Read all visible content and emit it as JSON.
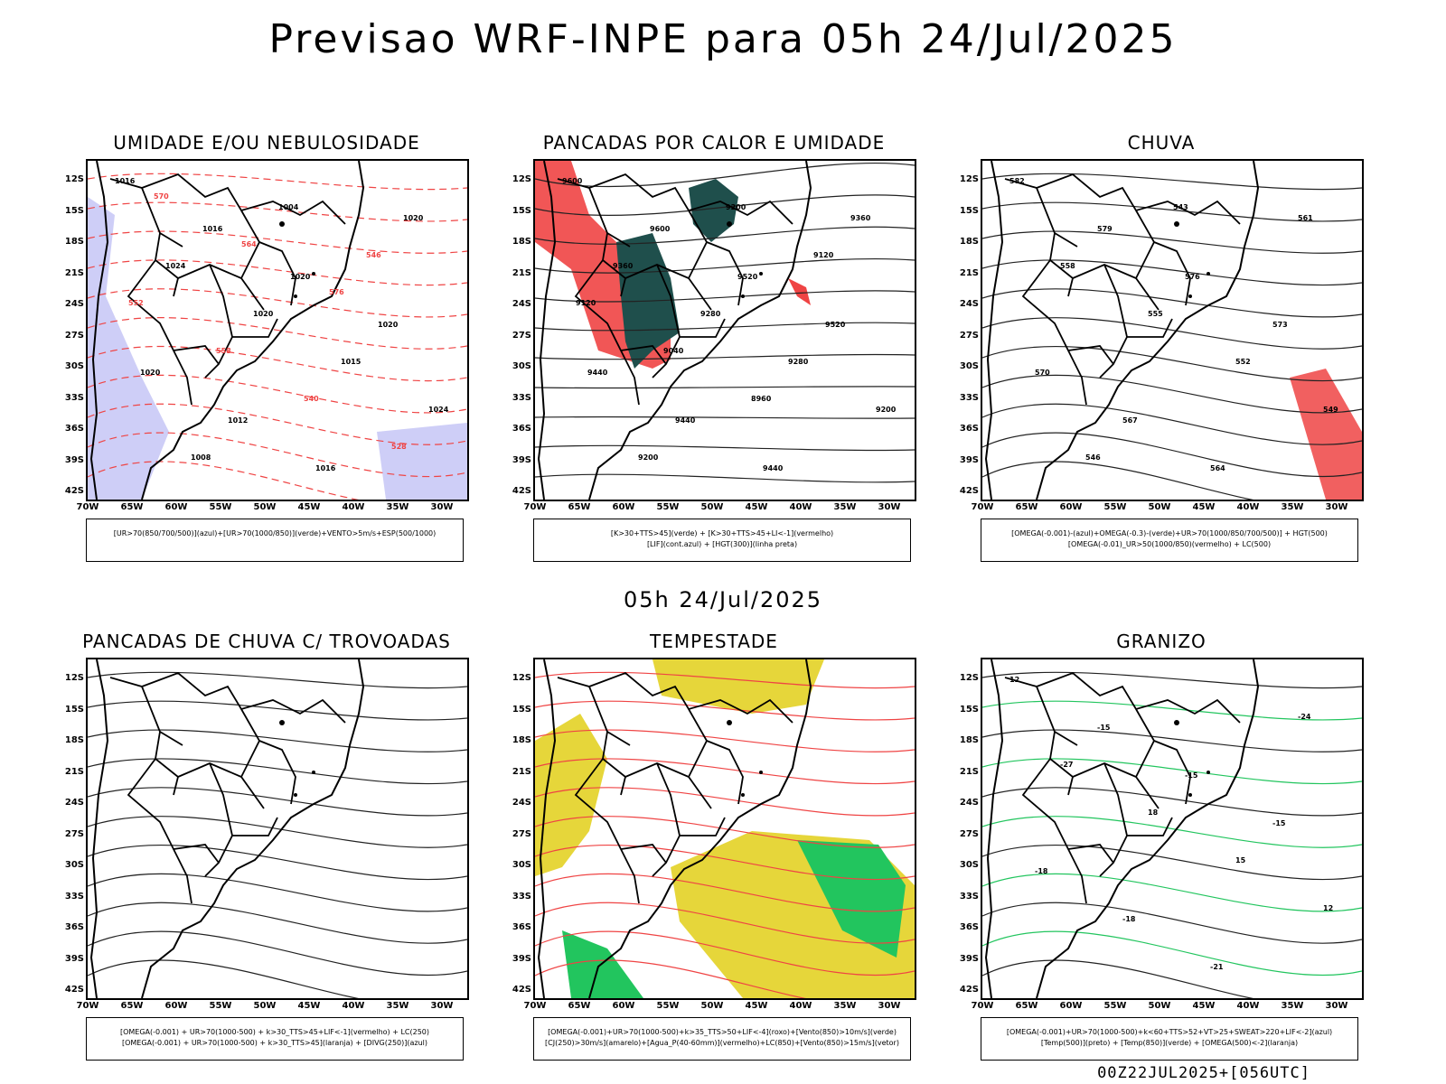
{
  "title": "Previsao WRF-INPE  para 05h 24/Jul/2025",
  "subtitle": "05h 24/Jul/2025",
  "footer": "00Z22JUL2025+[056UTC]",
  "lat_labels": [
    "12S",
    "15S",
    "18S",
    "21S",
    "24S",
    "27S",
    "30S",
    "33S",
    "36S",
    "39S",
    "42S"
  ],
  "lon_labels": [
    "70W",
    "65W",
    "60W",
    "55W",
    "50W",
    "45W",
    "40W",
    "35W",
    "30W"
  ],
  "panels": [
    {
      "title": "UMIDADE E/OU NEBULOSIDADE",
      "legend": [
        "[UR>70(850/700/500)](azul)+[UR>70(1000/850)](verde)+VENTO>5m/s+ESP(500/1000)"
      ],
      "labels": [
        "1016",
        "1016",
        "1020",
        "1020",
        "1020",
        "1012",
        "1016",
        "1020",
        "1024",
        "1020",
        "1015",
        "1024",
        "1008",
        "1004",
        "546",
        "552",
        "558",
        "540",
        "528",
        "570",
        "564",
        "576"
      ]
    },
    {
      "title": "PANCADAS POR CALOR E UMIDADE",
      "legend": [
        "[K>30+TTS>45](verde) + [K>30+TTS>45+LI<-1](vermelho)",
        "[LIF](cont.azul) + [HGT(300)](linha preta)"
      ],
      "labels": [
        "9600",
        "9600",
        "9520",
        "9520",
        "9440",
        "9440",
        "9440",
        "9360",
        "9360",
        "9280",
        "9280",
        "9200",
        "9200",
        "9200",
        "9120",
        "9120",
        "9040",
        "8960"
      ]
    },
    {
      "title": "CHUVA",
      "legend": [
        "[OMEGA(-0.001)-(azul)+OMEGA(-0.3)-(verde)+UR>70(1000/850/700/500)] + HGT(500)",
        "[OMEGA(-0.01)_UR>50(1000/850)(vermelho) + LC(500)"
      ],
      "labels": [
        "582",
        "579",
        "576",
        "573",
        "570",
        "567",
        "564",
        "561",
        "558",
        "555",
        "552",
        "549",
        "546",
        "543"
      ]
    },
    {
      "title": "PANCADAS DE CHUVA C/ TROVOADAS",
      "legend": [
        "[OMEGA(-0.001) + UR>70(1000-500) + k>30_TTS>45+LIF<-1](vermelho) + LC(250)",
        "[OMEGA(-0.001) + UR>70(1000-500) + k>30_TTS>45](laranja) + [DIVG(250)](azul)"
      ],
      "labels": []
    },
    {
      "title": "TEMPESTADE",
      "legend": [
        "[OMEGA(-0.001)+UR>70(1000-500)+k>35_TTS>50+LIF<-4](roxo)+[Vento(850)>10m/s](verde)",
        "[CJ(250)>30m/s](amarelo)+[Agua_P(40-60mm)](vermelho)+LC(850)+[Vento(850)>15m/s](vetor)"
      ],
      "labels": []
    },
    {
      "title": "GRANIZO",
      "legend": [
        "[OMEGA(-0.001)+UR>70(1000-500)+k<60+TTS>52+VT>25+SWEAT>220+LIF<-2](azul)",
        "[Temp(500)](preto) + [Temp(850)](verde) + [OMEGA(500)<-2](laranja)"
      ],
      "labels": [
        "12",
        "-15",
        "-15",
        "-15",
        "-18",
        "-18",
        "-21",
        "-24",
        "-27",
        "18",
        "15",
        "12"
      ]
    }
  ]
}
